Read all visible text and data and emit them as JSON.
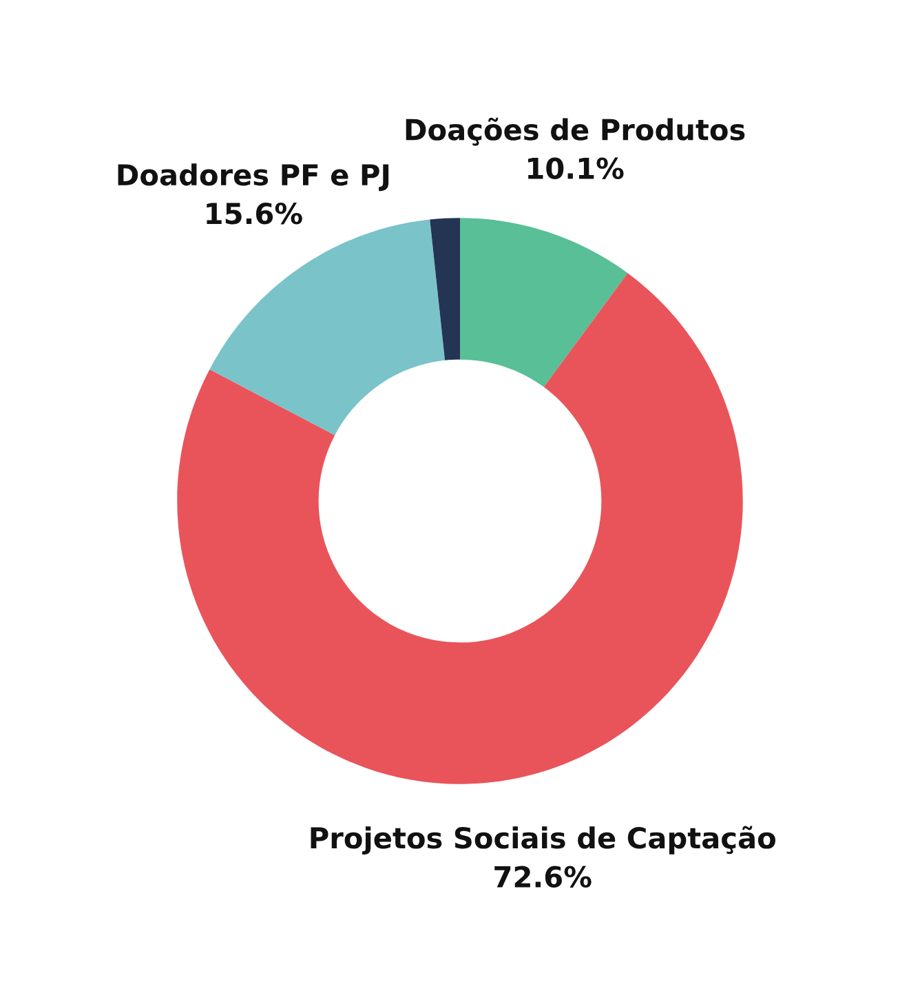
{
  "chart_data": {
    "type": "donut",
    "categories": [
      "Doações de Produtos",
      "Projetos Sociais de Captação",
      "Doadores PF e PJ",
      null
    ],
    "values": [
      10.1,
      72.6,
      15.6,
      1.7
    ],
    "colors": [
      "#58bf97",
      "#e9545a",
      "#79c3c9",
      "#233552"
    ],
    "value_labels": [
      "10.1%",
      "72.6%",
      "15.6%",
      null
    ]
  }
}
